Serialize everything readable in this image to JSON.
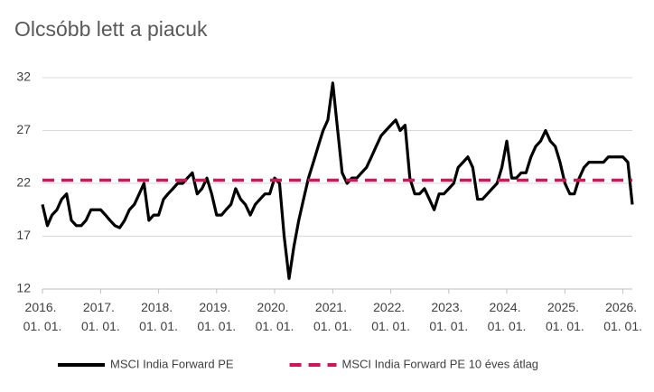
{
  "chart_data": {
    "type": "line",
    "title": "Olcsóbb lett a piacuk",
    "x": [
      "2016-01-01",
      "2016-02-01",
      "2016-03-01",
      "2016-04-01",
      "2016-05-01",
      "2016-06-01",
      "2016-07-01",
      "2016-08-01",
      "2016-09-01",
      "2016-10-01",
      "2016-11-01",
      "2016-12-01",
      "2017-01-01",
      "2017-02-01",
      "2017-03-01",
      "2017-04-01",
      "2017-05-01",
      "2017-06-01",
      "2017-07-01",
      "2017-08-01",
      "2017-09-01",
      "2017-10-01",
      "2017-11-01",
      "2017-12-01",
      "2018-01-01",
      "2018-02-01",
      "2018-03-01",
      "2018-04-01",
      "2018-05-01",
      "2018-06-01",
      "2018-07-01",
      "2018-08-01",
      "2018-09-01",
      "2018-10-01",
      "2018-11-01",
      "2018-12-01",
      "2019-01-01",
      "2019-02-01",
      "2019-03-01",
      "2019-04-01",
      "2019-05-01",
      "2019-06-01",
      "2019-07-01",
      "2019-08-01",
      "2019-09-01",
      "2019-10-01",
      "2019-11-01",
      "2019-12-01",
      "2020-01-01",
      "2020-02-01",
      "2020-03-01",
      "2020-04-01",
      "2020-05-01",
      "2020-06-01",
      "2020-07-01",
      "2020-08-01",
      "2020-09-01",
      "2020-10-01",
      "2020-11-01",
      "2020-12-01",
      "2021-01-01",
      "2021-02-01",
      "2021-03-01",
      "2021-04-01",
      "2021-05-01",
      "2021-06-01",
      "2021-07-01",
      "2021-08-01",
      "2021-09-01",
      "2021-10-01",
      "2021-11-01",
      "2021-12-01",
      "2022-01-01",
      "2022-02-01",
      "2022-03-01",
      "2022-04-01",
      "2022-05-01",
      "2022-06-01",
      "2022-07-01",
      "2022-08-01",
      "2022-09-01",
      "2022-10-01",
      "2022-11-01",
      "2022-12-01",
      "2023-01-01",
      "2023-02-01",
      "2023-03-01",
      "2023-04-01",
      "2023-05-01",
      "2023-06-01",
      "2023-07-01",
      "2023-08-01",
      "2023-09-01",
      "2023-10-01",
      "2023-11-01",
      "2023-12-01",
      "2024-01-01",
      "2024-02-01",
      "2024-03-01",
      "2024-04-01",
      "2024-05-01",
      "2024-06-01",
      "2024-07-01",
      "2024-08-01",
      "2024-09-01",
      "2024-10-01",
      "2024-11-01",
      "2024-12-01",
      "2025-01-01",
      "2025-02-01",
      "2025-03-01",
      "2025-04-01",
      "2025-05-01",
      "2025-06-01",
      "2025-07-01",
      "2025-08-01",
      "2025-09-01",
      "2025-10-01",
      "2025-11-01",
      "2025-12-01",
      "2026-01-01",
      "2026-02-01",
      "2026-03-01"
    ],
    "series": [
      {
        "name": "MSCI India Forward PE",
        "color": "#000000",
        "dash": false,
        "values": [
          20,
          18,
          19,
          19.5,
          20.5,
          21,
          18.5,
          18,
          18,
          18.5,
          19.5,
          19.5,
          19.5,
          19,
          18.5,
          18,
          17.8,
          18.5,
          19.5,
          20,
          21,
          22,
          18.5,
          19,
          19,
          20.5,
          21,
          21.5,
          22,
          22,
          22.5,
          23,
          21,
          21.5,
          22.5,
          21,
          19,
          19,
          19.5,
          20,
          21.5,
          20.5,
          20,
          19,
          20,
          20.5,
          21,
          21,
          22.5,
          22,
          17,
          13,
          16,
          18.5,
          20.5,
          22.5,
          24,
          25.5,
          27,
          28,
          31.5,
          27,
          23,
          22,
          22.5,
          22.5,
          23,
          23.5,
          24.5,
          25.5,
          26.5,
          27,
          27.5,
          28,
          27,
          27.5,
          22.5,
          21,
          21,
          21.5,
          20.5,
          19.5,
          21,
          21,
          21.5,
          22,
          23.5,
          24,
          24.5,
          23.5,
          20.5,
          20.5,
          21,
          21.5,
          22,
          23.5,
          26,
          22.5,
          22.5,
          23,
          23,
          24.5,
          25.5,
          26,
          27,
          26,
          25.5,
          24,
          22,
          21,
          21,
          22.5,
          23.5,
          24,
          24,
          24,
          24,
          24.5,
          24.5,
          24.5,
          24.5,
          24,
          20
        ]
      },
      {
        "name": "MSCI India Forward PE 10 éves átlag",
        "color": "#d4145a",
        "dash": true,
        "x": [
          "2016-01-01",
          "2026-03-01"
        ],
        "values": [
          22.3,
          22.3
        ]
      }
    ],
    "xlim": [
      "2016-01-01",
      "2026-03-01"
    ],
    "xticks": [
      {
        "value": "2016-01-01",
        "label": "2016. 01. 01."
      },
      {
        "value": "2017-01-01",
        "label": "2017. 01. 01."
      },
      {
        "value": "2018-01-01",
        "label": "2018. 01. 01."
      },
      {
        "value": "2019-01-01",
        "label": "2019. 01. 01."
      },
      {
        "value": "2020-01-01",
        "label": "2020. 01. 01."
      },
      {
        "value": "2021-01-01",
        "label": "2021. 01. 01."
      },
      {
        "value": "2022-01-01",
        "label": "2022. 01. 01."
      },
      {
        "value": "2023-01-01",
        "label": "2023. 01. 01."
      },
      {
        "value": "2024-01-01",
        "label": "2024. 01. 01."
      },
      {
        "value": "2025-01-01",
        "label": "2025. 01. 01."
      },
      {
        "value": "2026-01-01",
        "label": "2026. 01. 01."
      }
    ],
    "ylim": [
      12,
      32
    ],
    "yticks": [
      12,
      17,
      22,
      27,
      32
    ],
    "grid": true
  }
}
